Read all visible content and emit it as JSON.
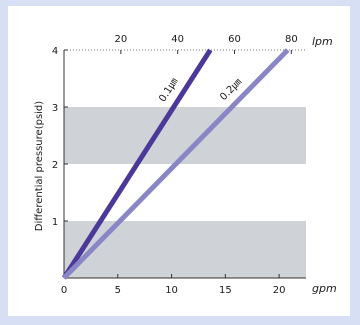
{
  "chart_data": {
    "type": "line",
    "title": "",
    "xlabel": "gpm",
    "x2label": "lpm",
    "ylabel": "Differential pressure(psid)",
    "xlim": [
      0,
      22.5
    ],
    "ylim": [
      0,
      4
    ],
    "x_ticks": [
      0,
      5,
      10,
      15,
      20
    ],
    "x_tick_labels": [
      "0",
      "5",
      "10",
      "15",
      "20"
    ],
    "x2_ticks": [
      20,
      40,
      60,
      80
    ],
    "x2_tick_labels": [
      "20",
      "40",
      "60",
      "80"
    ],
    "y_ticks": [
      1,
      2,
      3,
      4
    ],
    "y_tick_labels": [
      "1",
      "2",
      "3",
      "4"
    ],
    "shaded_bands": [
      [
        0,
        1
      ],
      [
        2,
        3
      ]
    ],
    "grid": false,
    "legend": "none",
    "series": [
      {
        "name": "0.1㎛",
        "color": "#4b3898",
        "x": [
          0,
          13.6
        ],
        "y": [
          0,
          4
        ]
      },
      {
        "name": "0.2㎛",
        "color": "#8a86c6",
        "x": [
          0,
          20.8
        ],
        "y": [
          0,
          4
        ]
      }
    ],
    "colors": {
      "band": "#cfd2d7",
      "background": "#d6dff4"
    }
  }
}
